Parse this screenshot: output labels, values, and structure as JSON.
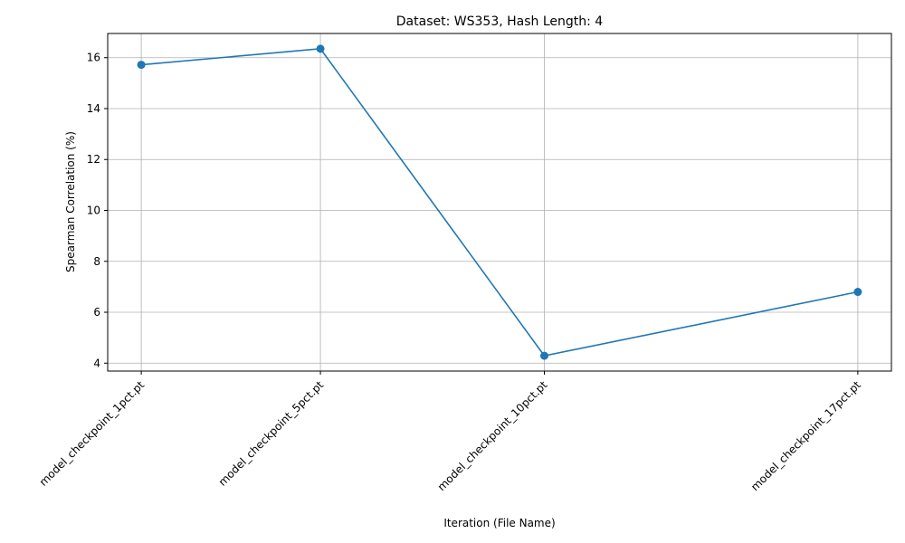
{
  "chart_data": {
    "type": "line",
    "title": "Dataset: WS353, Hash Length: 4",
    "xlabel": "Iteration (File Name)",
    "ylabel": "Spearman Correlation (%)",
    "x_numeric": [
      1,
      5,
      10,
      17
    ],
    "categories": [
      "model_checkpoint_1pct.pt",
      "model_checkpoint_5pct.pt",
      "model_checkpoint_10pct.pt",
      "model_checkpoint_17pct.pt"
    ],
    "series": [
      {
        "values": [
          15.72,
          16.35,
          4.29,
          6.8
        ]
      }
    ],
    "xlim": [
      0.25,
      17.75
    ],
    "ylim": [
      3.69,
      16.95
    ],
    "yticks": [
      4,
      6,
      8,
      10,
      12,
      14,
      16
    ],
    "grid": true,
    "line_color": "#1f77b4",
    "marker": "circle"
  }
}
